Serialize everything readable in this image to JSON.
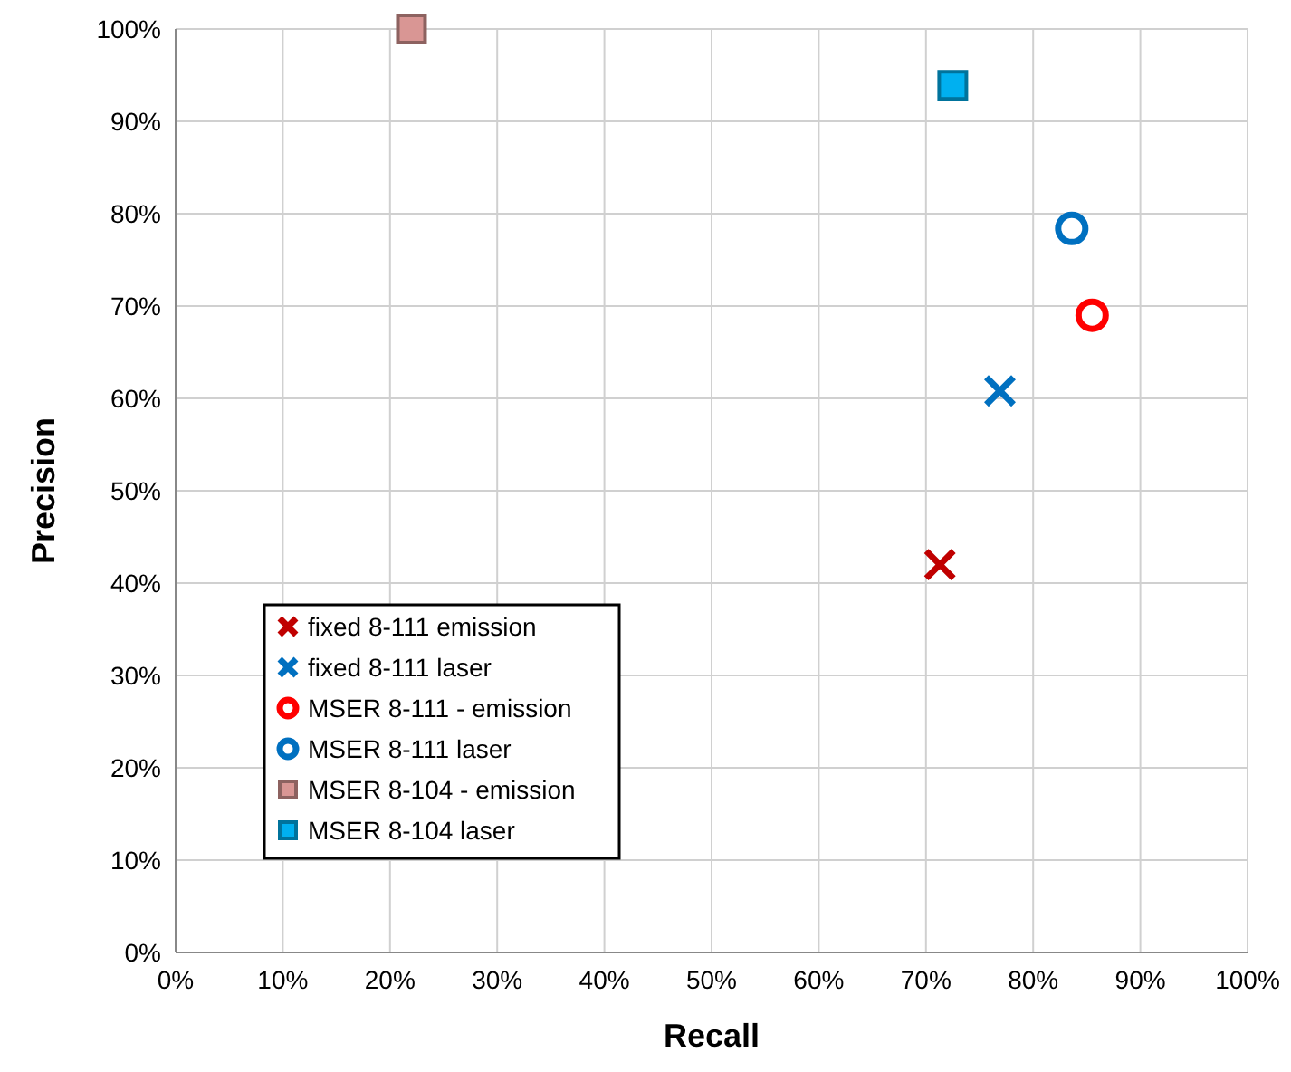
{
  "chart_data": {
    "type": "scatter",
    "xlabel": "Recall",
    "ylabel": "Precision",
    "xlim": [
      0,
      1
    ],
    "ylim": [
      0,
      1
    ],
    "xticks": [
      {
        "value": 0,
        "label": "0%"
      },
      {
        "value": 0.1,
        "label": "10%"
      },
      {
        "value": 0.2,
        "label": "20%"
      },
      {
        "value": 0.3,
        "label": "30%"
      },
      {
        "value": 0.4,
        "label": "40%"
      },
      {
        "value": 0.5,
        "label": "50%"
      },
      {
        "value": 0.6,
        "label": "60%"
      },
      {
        "value": 0.7,
        "label": "70%"
      },
      {
        "value": 0.8,
        "label": "80%"
      },
      {
        "value": 0.9,
        "label": "90%"
      },
      {
        "value": 1,
        "label": "100%"
      }
    ],
    "yticks": [
      {
        "value": 0,
        "label": "0%"
      },
      {
        "value": 0.1,
        "label": "10%"
      },
      {
        "value": 0.2,
        "label": "20%"
      },
      {
        "value": 0.3,
        "label": "30%"
      },
      {
        "value": 0.4,
        "label": "40%"
      },
      {
        "value": 0.5,
        "label": "50%"
      },
      {
        "value": 0.6,
        "label": "60%"
      },
      {
        "value": 0.7,
        "label": "70%"
      },
      {
        "value": 0.8,
        "label": "80%"
      },
      {
        "value": 0.9,
        "label": "90%"
      },
      {
        "value": 1,
        "label": "100%"
      }
    ],
    "grid": true,
    "legend": "bottom left",
    "series": [
      {
        "name": "fixed 8-111 emission",
        "color": "#c00000",
        "marker": "cross",
        "x": [
          0.713
        ],
        "values": [
          0.42
        ]
      },
      {
        "name": "fixed 8-111 laser",
        "color": "#0070c0",
        "marker": "cross",
        "x": [
          0.769
        ],
        "values": [
          0.608
        ]
      },
      {
        "name": "MSER 8-111 - emission",
        "color": "#ff0000",
        "marker": "circle",
        "x": [
          0.855
        ],
        "values": [
          0.69
        ]
      },
      {
        "name": "MSER 8-111 laser",
        "color": "#0070c0",
        "marker": "circle",
        "x": [
          0.836
        ],
        "values": [
          0.784
        ]
      },
      {
        "name": "MSER 8-104 - emission",
        "color": "#d99694",
        "marker": "square",
        "x": [
          0.22
        ],
        "values": [
          1.0
        ]
      },
      {
        "name": "MSER 8-104 laser",
        "color": "#00b0f0",
        "marker": "square",
        "x": [
          0.725
        ],
        "values": [
          0.939
        ]
      }
    ]
  }
}
